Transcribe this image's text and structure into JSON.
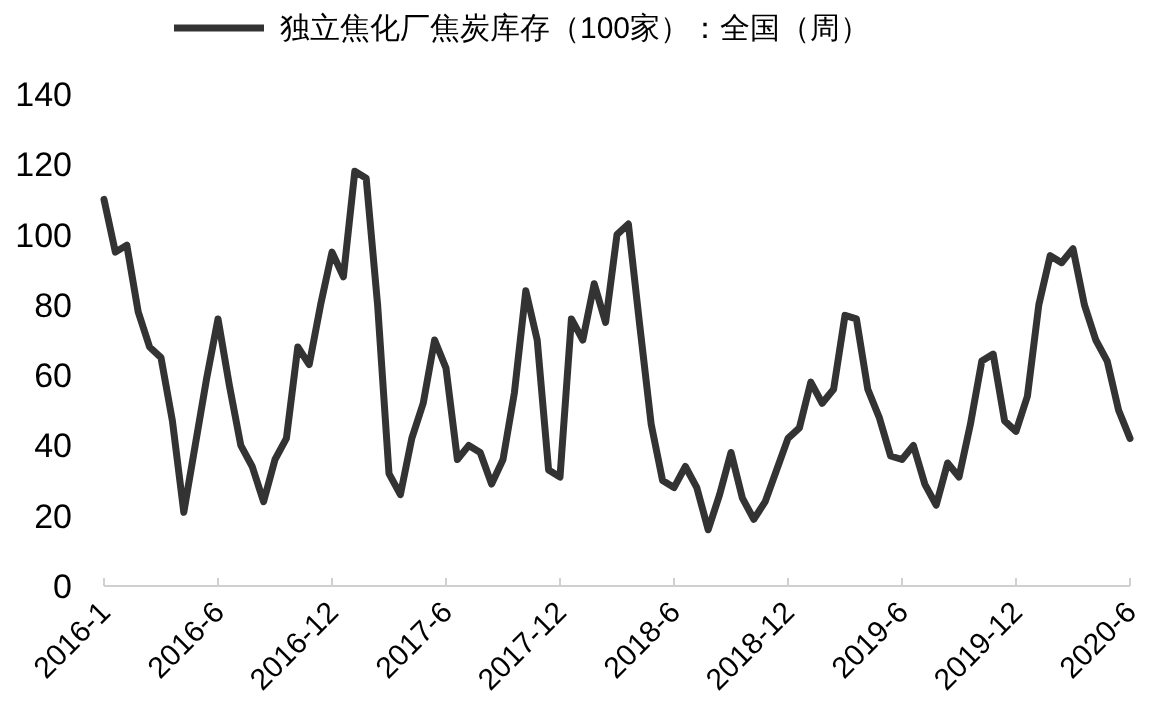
{
  "chart_data": {
    "type": "line",
    "categories": [
      "2016-1",
      null,
      null,
      null,
      null,
      null,
      null,
      null,
      null,
      null,
      "2016-6",
      null,
      null,
      null,
      null,
      null,
      null,
      null,
      null,
      null,
      "2016-12",
      null,
      null,
      null,
      null,
      null,
      null,
      null,
      null,
      null,
      "2017-6",
      null,
      null,
      null,
      null,
      null,
      null,
      null,
      null,
      null,
      "2017-12",
      null,
      null,
      null,
      null,
      null,
      null,
      null,
      null,
      null,
      "2018-6",
      null,
      null,
      null,
      null,
      null,
      null,
      null,
      null,
      null,
      "2018-12",
      null,
      null,
      null,
      null,
      null,
      null,
      null,
      null,
      null,
      "2019-6",
      null,
      null,
      null,
      null,
      null,
      null,
      null,
      null,
      null,
      "2019-12",
      null,
      null,
      null,
      null,
      null,
      null,
      null,
      null,
      null,
      "2020-6"
    ],
    "series": [
      {
        "name": "独立焦化厂焦炭库存（100家）：全国（周）",
        "color": "#333333",
        "values": [
          110,
          95,
          97,
          78,
          68,
          65,
          47,
          21,
          40,
          59,
          76,
          57,
          40,
          34,
          24,
          36,
          42,
          68,
          63,
          80,
          95,
          88,
          118,
          116,
          80,
          32,
          26,
          42,
          52,
          70,
          62,
          36,
          40,
          38,
          29,
          36,
          55,
          84,
          70,
          33,
          31,
          76,
          70,
          86,
          75,
          100,
          103,
          74,
          46,
          30,
          28,
          34,
          28,
          16,
          26,
          38,
          25,
          19,
          24,
          33,
          42,
          45,
          58,
          52,
          56,
          77,
          76,
          56,
          48,
          37,
          36,
          40,
          29,
          23,
          35,
          31,
          46,
          64,
          66,
          47,
          44,
          54,
          80,
          94,
          92,
          96,
          80,
          70,
          64,
          50,
          42
        ]
      }
    ],
    "ylim": [
      0,
      140
    ],
    "yticks": [
      0,
      20,
      40,
      60,
      80,
      100,
      120,
      140
    ],
    "legend": "top"
  }
}
